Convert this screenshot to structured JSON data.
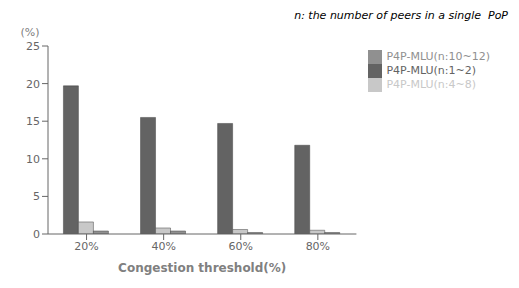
{
  "chart_data": {
    "type": "bar",
    "categories": [
      "20%",
      "40%",
      "60%",
      "80%"
    ],
    "series": [
      {
        "name": "P4P-MLU(n:1~2)",
        "color": "#636363",
        "values": [
          19.7,
          15.5,
          14.7,
          11.8
        ]
      },
      {
        "name": "P4P-MLU(n:4~8)",
        "color": "#c8c8c8",
        "values": [
          1.6,
          0.8,
          0.6,
          0.5
        ]
      },
      {
        "name": "P4P-MLU(n:10~12)",
        "color": "#909090",
        "values": [
          0.4,
          0.4,
          0.2,
          0.2
        ]
      }
    ],
    "xlabel": "Congestion threshold(%)",
    "ylabel": "(%)",
    "ylim": [
      0,
      25
    ],
    "yticks": [
      0,
      5,
      10,
      15,
      20,
      25
    ],
    "annotation": "n: the number of peers in a single  PoP",
    "grid": false,
    "legend": "right"
  }
}
